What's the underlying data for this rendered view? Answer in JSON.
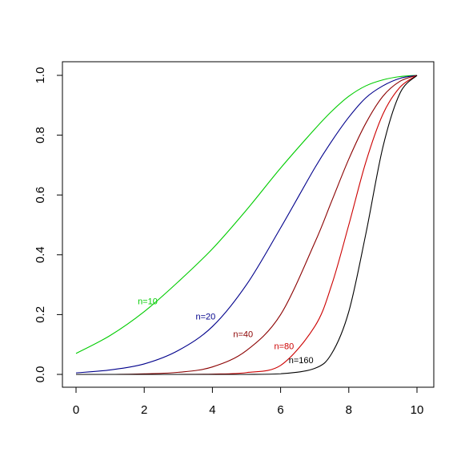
{
  "chart_data": {
    "type": "line",
    "title": "",
    "xlabel": "",
    "ylabel": "",
    "xlim": [
      0,
      10
    ],
    "ylim": [
      0,
      1
    ],
    "x_ticks": [
      "0",
      "2",
      "4",
      "6",
      "8",
      "10"
    ],
    "y_ticks": [
      "0.0",
      "0.2",
      "0.4",
      "0.6",
      "0.8",
      "1.0"
    ],
    "grid": false,
    "legend": "none",
    "x": [
      0,
      1,
      2,
      3,
      4,
      5,
      6,
      7,
      7.5,
      8,
      8.5,
      9,
      9.5,
      10
    ],
    "series": [
      {
        "name": "n=10",
        "color": "#00cc00",
        "values": [
          0.07,
          0.13,
          0.21,
          0.31,
          0.42,
          0.55,
          0.69,
          0.82,
          0.88,
          0.93,
          0.965,
          0.985,
          0.996,
          1.0
        ]
      },
      {
        "name": "n=20",
        "color": "#00008b",
        "values": [
          0.005,
          0.015,
          0.035,
          0.08,
          0.16,
          0.3,
          0.49,
          0.69,
          0.78,
          0.86,
          0.925,
          0.965,
          0.99,
          1.0
        ]
      },
      {
        "name": "n=40",
        "color": "#8b0000",
        "values": [
          0.0,
          0.0,
          0.002,
          0.007,
          0.025,
          0.08,
          0.2,
          0.44,
          0.58,
          0.72,
          0.84,
          0.93,
          0.98,
          1.0
        ]
      },
      {
        "name": "n=80",
        "color": "#cc0000",
        "values": [
          0.0,
          0.0,
          0.0,
          0.0,
          0.001,
          0.006,
          0.03,
          0.16,
          0.3,
          0.5,
          0.71,
          0.87,
          0.96,
          1.0
        ]
      },
      {
        "name": "n=160",
        "color": "#000000",
        "values": [
          0.0,
          0.0,
          0.0,
          0.0,
          0.0,
          0.0,
          0.002,
          0.02,
          0.07,
          0.21,
          0.47,
          0.76,
          0.94,
          1.0
        ]
      }
    ],
    "annotations": [
      {
        "text": "n=10",
        "x": 2.1,
        "y": 0.245,
        "color": "#00cc00"
      },
      {
        "text": "n=20",
        "x": 3.8,
        "y": 0.195,
        "color": "#00008b"
      },
      {
        "text": "n=40",
        "x": 4.9,
        "y": 0.135,
        "color": "#8b0000"
      },
      {
        "text": "n=80",
        "x": 6.1,
        "y": 0.095,
        "color": "#cc0000"
      },
      {
        "text": "n=160",
        "x": 6.6,
        "y": 0.048,
        "color": "#000000"
      }
    ]
  }
}
